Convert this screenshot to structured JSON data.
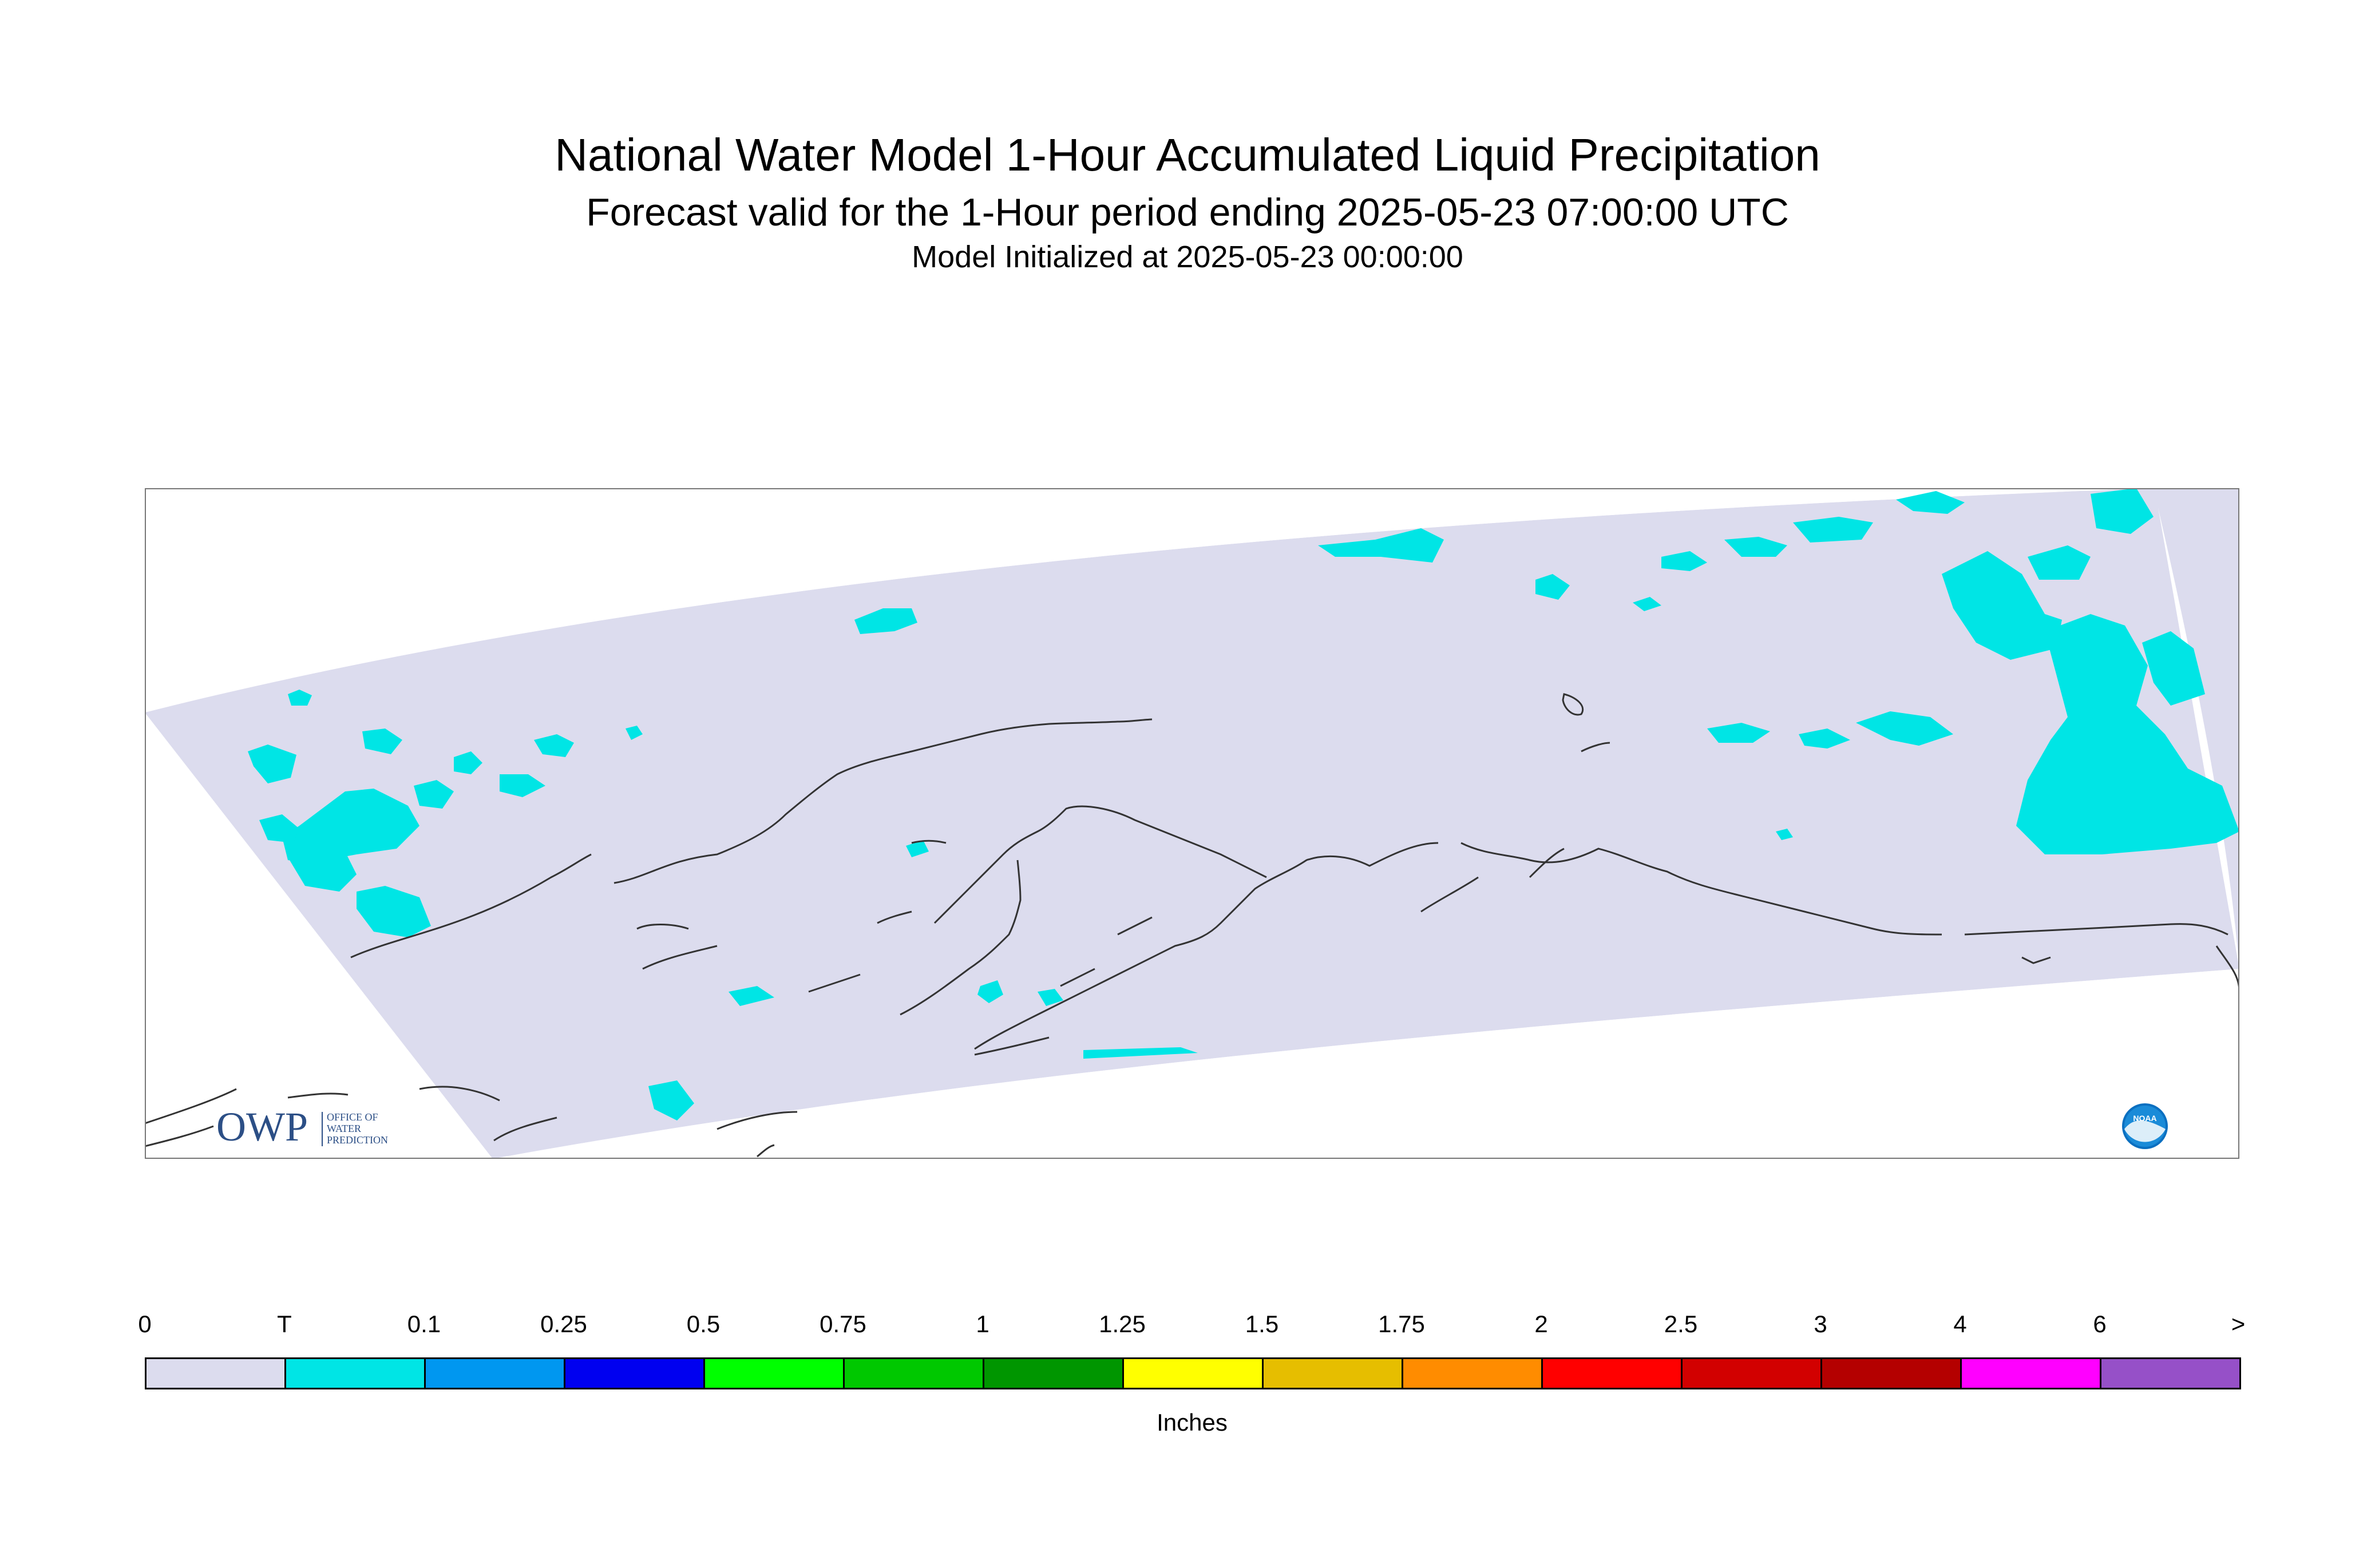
{
  "header": {
    "title": "National Water Model 1-Hour Accumulated Liquid Precipitation",
    "subtitle": "Forecast valid for the 1-Hour period ending 2025-05-23 07:00:00 UTC",
    "init": "Model Initialized at 2025-05-23 00:00:00"
  },
  "logos": {
    "owp_mark": "OWP",
    "owp_text": [
      "OFFICE OF",
      "WATER",
      "PREDICTION"
    ],
    "noaa_mark": "NOAA"
  },
  "map": {
    "domain_fill": "#dcdcee",
    "precip_trace_color": "#00e5e5",
    "coastline_color": "#333333"
  },
  "legend": {
    "unit_label": "Inches",
    "ticks": [
      "0",
      "T",
      "0.1",
      "0.25",
      "0.5",
      "0.75",
      "1",
      "1.25",
      "1.5",
      "1.75",
      "2",
      "2.5",
      "3",
      "4",
      "6",
      ">"
    ],
    "colors": [
      "#dcdcee",
      "#00e5e5",
      "#0097f0",
      "#0000f0",
      "#00ff00",
      "#00c800",
      "#009600",
      "#ffff00",
      "#e6be00",
      "#ff8c00",
      "#ff0000",
      "#d20000",
      "#b40000",
      "#ff00ff",
      "#9650c8"
    ]
  }
}
